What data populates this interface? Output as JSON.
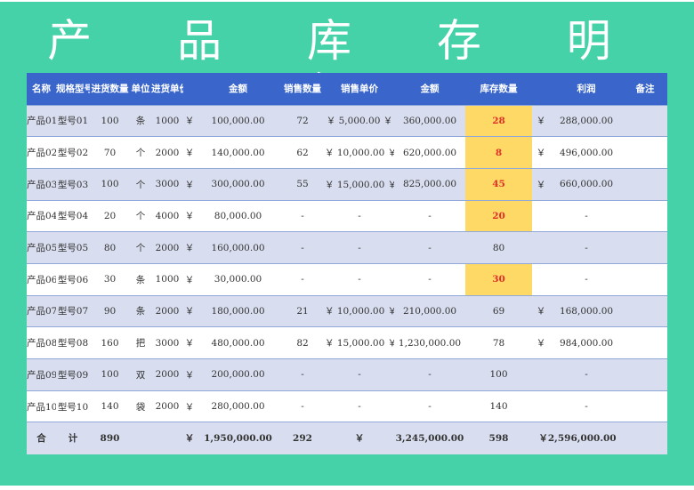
{
  "title": "产 品 库 存 明 细",
  "headers": {
    "name": "名称",
    "model": "规格型号",
    "in_qty": "进货数量",
    "unit": "单位",
    "in_price": "进货单价",
    "amount": "金额",
    "sale_qty": "销售数量",
    "sale_price": "销售单价",
    "sale_amount": "金额",
    "stock": "库存数量",
    "profit": "利润",
    "note": "备注"
  },
  "rows": [
    {
      "name": "产品01",
      "model": "型号01",
      "in_qty": "100",
      "unit": "条",
      "in_price": "1000",
      "cur": "￥",
      "amount": "100,000.00",
      "sale_qty": "72",
      "sale_price": "￥ 5,000.00 ￥",
      "sale_amount": "360,000.00",
      "stock": "28",
      "stock_hl": true,
      "profit_cur": "￥",
      "profit": "288,000.00"
    },
    {
      "name": "产品02",
      "model": "型号02",
      "in_qty": "70",
      "unit": "个",
      "in_price": "2000",
      "cur": "￥",
      "amount": "140,000.00",
      "sale_qty": "62",
      "sale_price": "￥ 10,000.00 ￥",
      "sale_amount": "620,000.00",
      "stock": "8",
      "stock_hl": true,
      "profit_cur": "￥",
      "profit": "496,000.00"
    },
    {
      "name": "产品03",
      "model": "型号03",
      "in_qty": "100",
      "unit": "个",
      "in_price": "3000",
      "cur": "￥",
      "amount": "300,000.00",
      "sale_qty": "55",
      "sale_price": "￥ 15,000.00 ￥",
      "sale_amount": "825,000.00",
      "stock": "45",
      "stock_hl": true,
      "profit_cur": "￥",
      "profit": "660,000.00"
    },
    {
      "name": "产品04",
      "model": "型号04",
      "in_qty": "20",
      "unit": "个",
      "in_price": "4000",
      "cur": "￥",
      "amount": "80,000.00",
      "sale_qty": "-",
      "sale_price": "-",
      "sale_amount": "-",
      "stock": "20",
      "stock_hl": true,
      "profit_cur": "",
      "profit": "-"
    },
    {
      "name": "产品05",
      "model": "型号05",
      "in_qty": "80",
      "unit": "个",
      "in_price": "2000",
      "cur": "￥",
      "amount": "160,000.00",
      "sale_qty": "-",
      "sale_price": "-",
      "sale_amount": "-",
      "stock": "80",
      "stock_hl": false,
      "profit_cur": "",
      "profit": "-"
    },
    {
      "name": "产品06",
      "model": "型号06",
      "in_qty": "30",
      "unit": "条",
      "in_price": "1000",
      "cur": "￥",
      "amount": "30,000.00",
      "sale_qty": "-",
      "sale_price": "-",
      "sale_amount": "-",
      "stock": "30",
      "stock_hl": true,
      "profit_cur": "",
      "profit": "-"
    },
    {
      "name": "产品07",
      "model": "型号07",
      "in_qty": "90",
      "unit": "条",
      "in_price": "2000",
      "cur": "￥",
      "amount": "180,000.00",
      "sale_qty": "21",
      "sale_price": "￥ 10,000.00 ￥",
      "sale_amount": "210,000.00",
      "stock": "69",
      "stock_hl": false,
      "profit_cur": "￥",
      "profit": "168,000.00"
    },
    {
      "name": "产品08",
      "model": "型号08",
      "in_qty": "160",
      "unit": "把",
      "in_price": "3000",
      "cur": "￥",
      "amount": "480,000.00",
      "sale_qty": "82",
      "sale_price": "￥ 15,000.00 ￥",
      "sale_amount": "1,230,000.00",
      "stock": "78",
      "stock_hl": false,
      "profit_cur": "￥",
      "profit": "984,000.00"
    },
    {
      "name": "产品09",
      "model": "型号09",
      "in_qty": "100",
      "unit": "双",
      "in_price": "2000",
      "cur": "￥",
      "amount": "200,000.00",
      "sale_qty": "-",
      "sale_price": "-",
      "sale_amount": "-",
      "stock": "100",
      "stock_hl": false,
      "profit_cur": "",
      "profit": "-"
    },
    {
      "name": "产品10",
      "model": "型号10",
      "in_qty": "140",
      "unit": "袋",
      "in_price": "2000",
      "cur": "￥",
      "amount": "280,000.00",
      "sale_qty": "-",
      "sale_price": "-",
      "sale_amount": "-",
      "stock": "140",
      "stock_hl": false,
      "profit_cur": "",
      "profit": "-"
    }
  ],
  "total": {
    "label1": "合",
    "label2": "计",
    "in_qty": "890",
    "cur": "￥",
    "amount": "1,950,000.00",
    "sale_qty": "292",
    "sale_cur": "￥",
    "sale_amount": "3,245,000.00",
    "stock": "598",
    "profit": "￥2,596,000.00"
  },
  "colors": {
    "background": "#45d2a8",
    "header": "#3a66cc",
    "row_alt": "#d8deef",
    "stock_highlight": "#ffd966",
    "stock_highlight_text": "#e0302a"
  }
}
